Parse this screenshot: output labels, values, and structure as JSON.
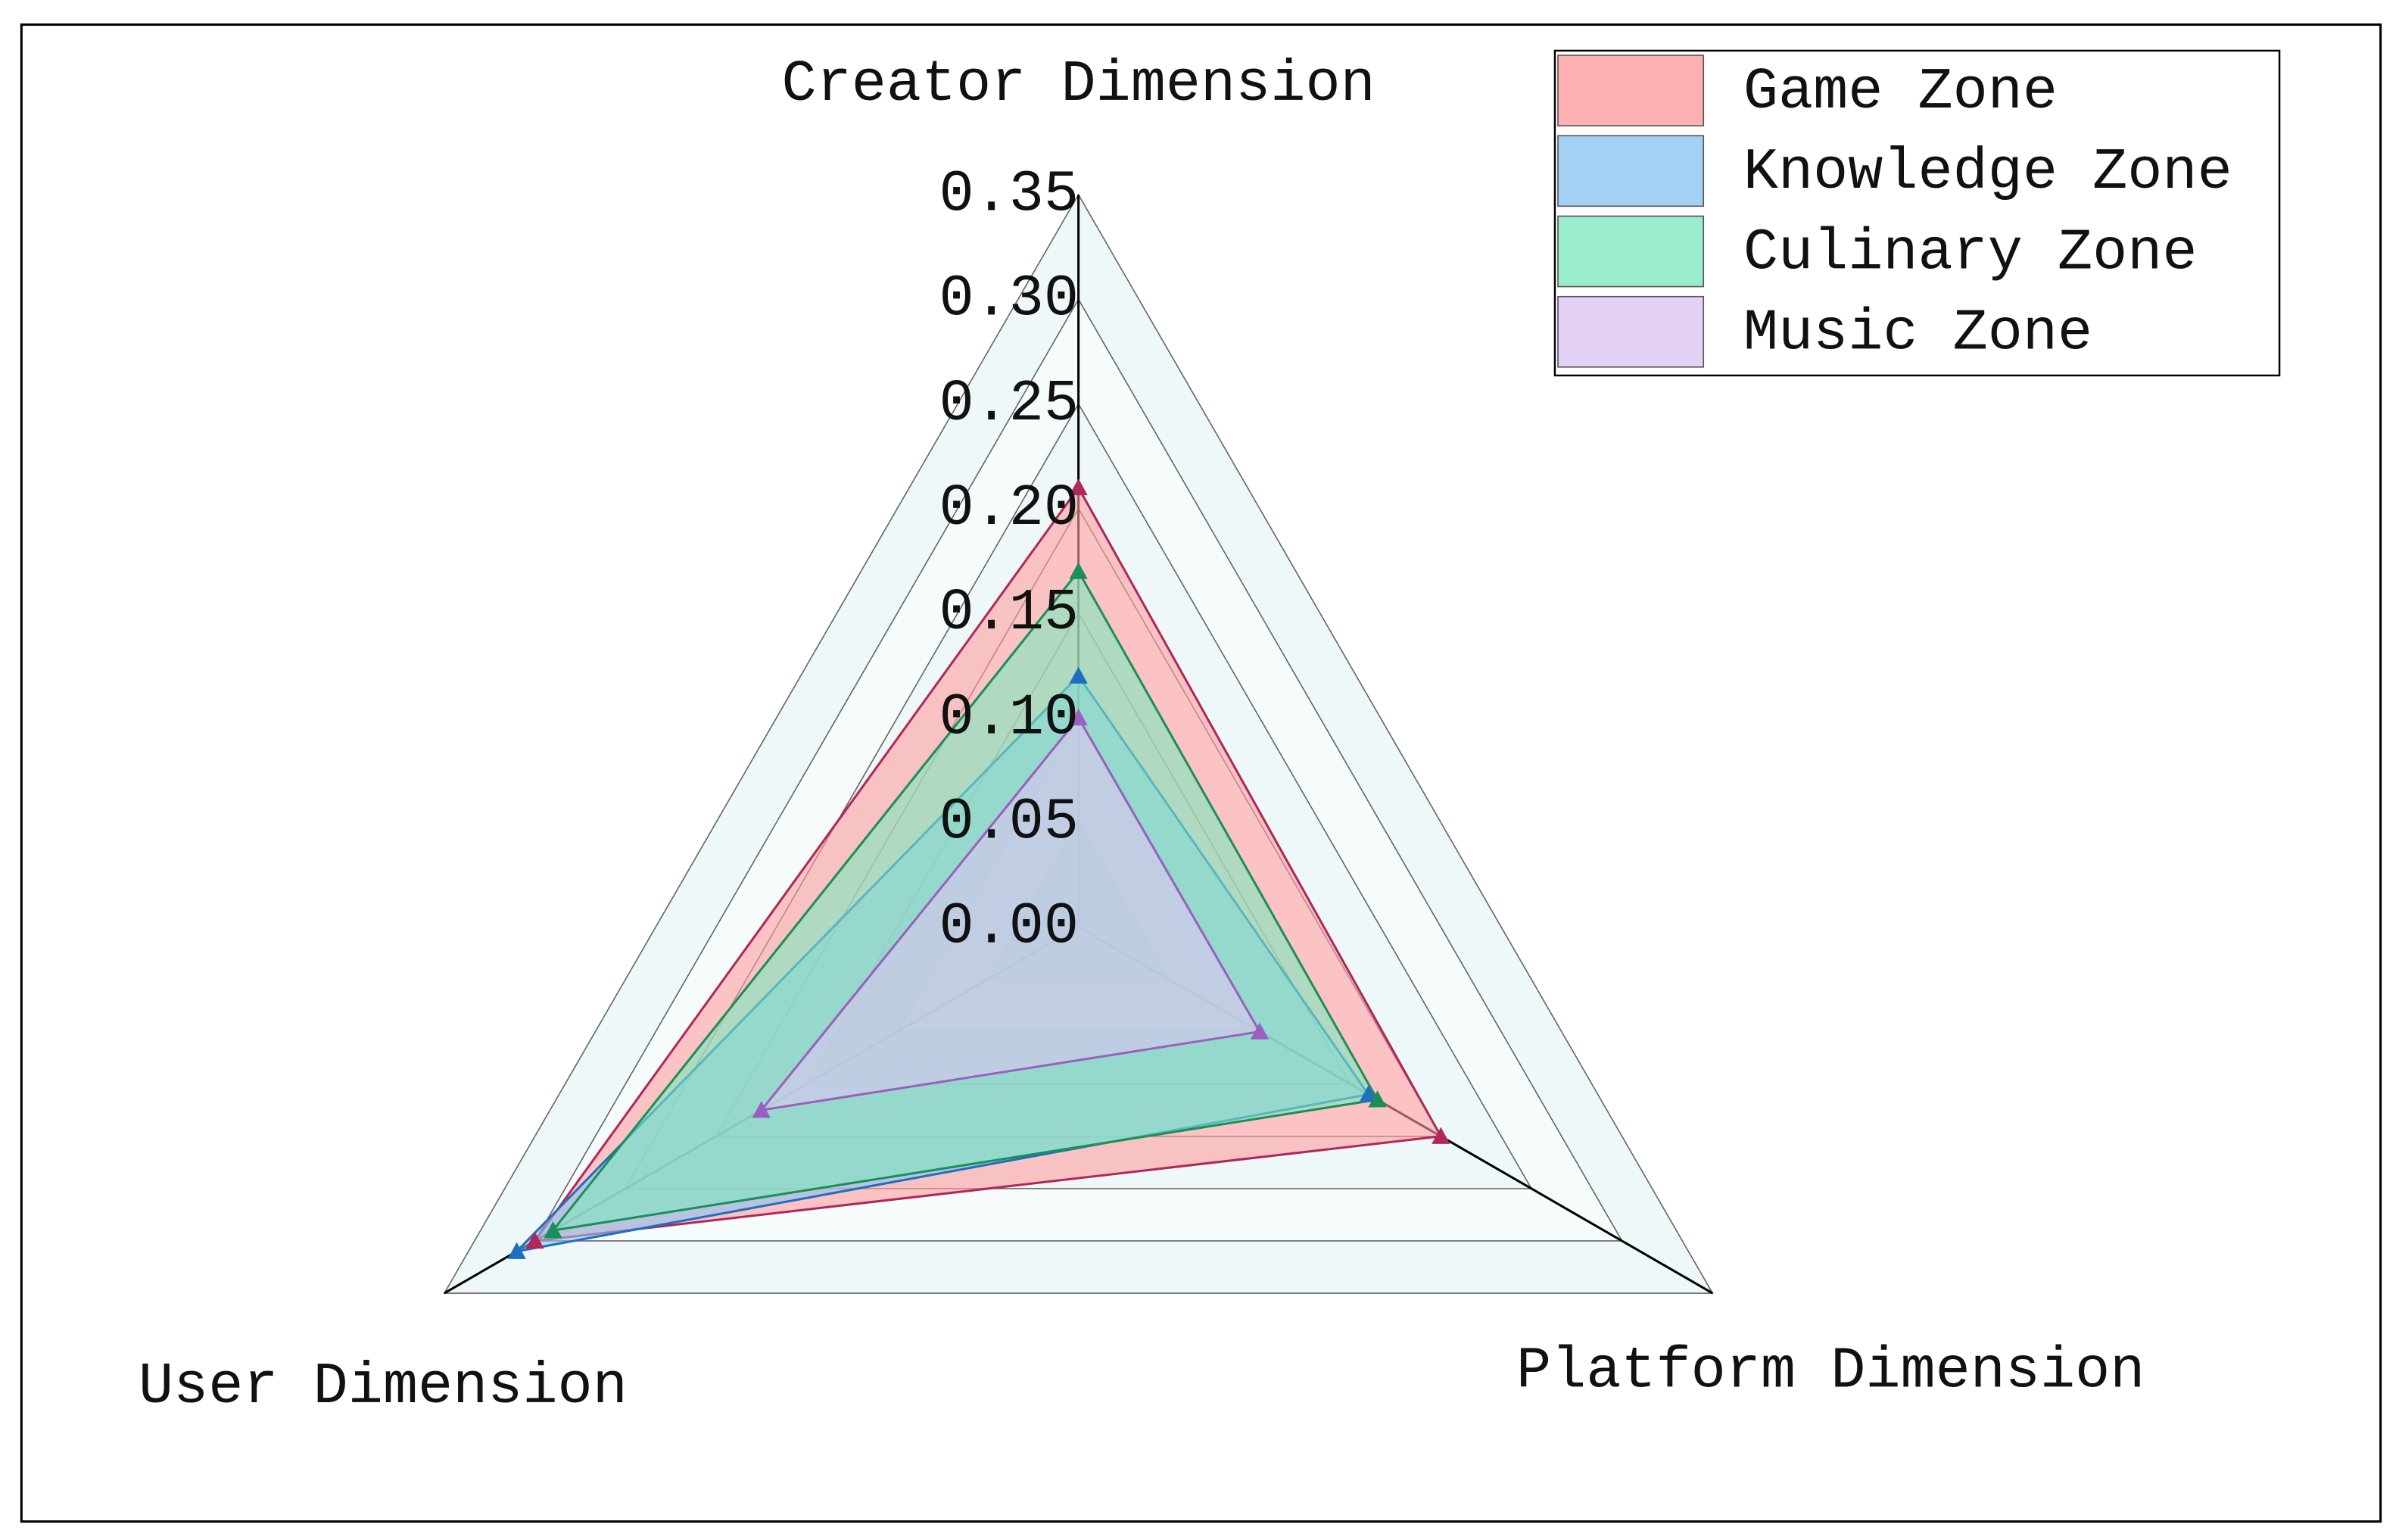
{
  "chart_data": {
    "type": "radar",
    "categories": [
      "Creator Dimension",
      "Platform Dimension",
      "User Dimension"
    ],
    "ylim": [
      0,
      0.35
    ],
    "yticks": [
      {
        "value": 0,
        "label": "0.00"
      },
      0.05,
      {
        "value": 0.1,
        "label": "0.10"
      },
      0.15,
      {
        "value": 0.2,
        "label": "0.20"
      },
      0.25,
      {
        "value": 0.3,
        "label": "0.30"
      },
      0.35
    ],
    "grid": true,
    "legend": "upper right",
    "series": [
      {
        "name": "Game Zone",
        "color": "#ff9e9e",
        "edge": "#b0285a",
        "values": [
          0.21,
          0.2,
          0.3
        ]
      },
      {
        "name": "Knowledge Zone",
        "color": "#8cc4f2",
        "edge": "#1f6fbf",
        "values": [
          0.12,
          0.16,
          0.31
        ]
      },
      {
        "name": "Culinary Zone",
        "color": "#7fe8c0",
        "edge": "#1a8f5a",
        "values": [
          0.17,
          0.165,
          0.29
        ]
      },
      {
        "name": "Music Zone",
        "color": "#dcc4f2",
        "edge": "#9a5fc0",
        "values": [
          0.1,
          0.1,
          0.175
        ]
      }
    ]
  }
}
